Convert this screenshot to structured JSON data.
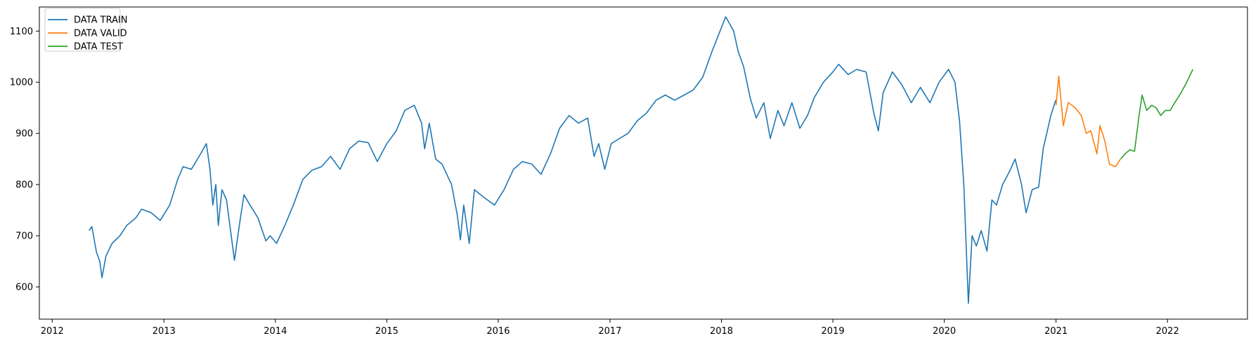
{
  "chart_data": {
    "type": "line",
    "title": "",
    "xlabel": "",
    "ylabel": "",
    "x_ticks": [
      "2012",
      "2013",
      "2014",
      "2015",
      "2016",
      "2017",
      "2018",
      "2019",
      "2020",
      "2021",
      "2022"
    ],
    "y_ticks": [
      "600",
      "700",
      "800",
      "900",
      "1000",
      "1100"
    ],
    "xlim": [
      "2011-11-20",
      "2022-09-20"
    ],
    "ylim": [
      537,
      1147
    ],
    "grid": false,
    "legend_position": "top-left",
    "series": [
      {
        "name": "DATA TRAIN",
        "color": "#1f77b4",
        "points": [
          [
            "2012-05-01",
            710
          ],
          [
            "2012-05-10",
            718
          ],
          [
            "2012-05-25",
            668
          ],
          [
            "2012-06-05",
            650
          ],
          [
            "2012-06-12",
            618
          ],
          [
            "2012-06-25",
            660
          ],
          [
            "2012-07-15",
            685
          ],
          [
            "2012-08-10",
            700
          ],
          [
            "2012-09-01",
            720
          ],
          [
            "2012-10-01",
            735
          ],
          [
            "2012-10-20",
            752
          ],
          [
            "2012-11-20",
            745
          ],
          [
            "2012-12-20",
            730
          ],
          [
            "2013-01-20",
            760
          ],
          [
            "2013-02-15",
            810
          ],
          [
            "2013-03-05",
            835
          ],
          [
            "2013-04-01",
            830
          ],
          [
            "2013-05-01",
            860
          ],
          [
            "2013-05-20",
            880
          ],
          [
            "2013-06-01",
            830
          ],
          [
            "2013-06-10",
            760
          ],
          [
            "2013-06-20",
            800
          ],
          [
            "2013-06-28",
            720
          ],
          [
            "2013-07-10",
            790
          ],
          [
            "2013-07-25",
            770
          ],
          [
            "2013-08-20",
            652
          ],
          [
            "2013-09-05",
            720
          ],
          [
            "2013-09-20",
            780
          ],
          [
            "2013-10-10",
            760
          ],
          [
            "2013-11-05",
            735
          ],
          [
            "2013-12-01",
            690
          ],
          [
            "2013-12-15",
            700
          ],
          [
            "2014-01-05",
            685
          ],
          [
            "2014-02-01",
            720
          ],
          [
            "2014-03-01",
            760
          ],
          [
            "2014-04-01",
            810
          ],
          [
            "2014-05-01",
            828
          ],
          [
            "2014-06-01",
            835
          ],
          [
            "2014-07-01",
            855
          ],
          [
            "2014-08-01",
            830
          ],
          [
            "2014-09-01",
            870
          ],
          [
            "2014-10-01",
            885
          ],
          [
            "2014-11-01",
            882
          ],
          [
            "2014-12-01",
            845
          ],
          [
            "2015-01-01",
            880
          ],
          [
            "2015-02-01",
            905
          ],
          [
            "2015-03-01",
            945
          ],
          [
            "2015-04-01",
            955
          ],
          [
            "2015-04-25",
            920
          ],
          [
            "2015-05-05",
            870
          ],
          [
            "2015-05-20",
            920
          ],
          [
            "2015-06-10",
            850
          ],
          [
            "2015-07-01",
            840
          ],
          [
            "2015-08-01",
            800
          ],
          [
            "2015-08-20",
            740
          ],
          [
            "2015-08-30",
            692
          ],
          [
            "2015-09-10",
            760
          ],
          [
            "2015-09-28",
            685
          ],
          [
            "2015-10-15",
            790
          ],
          [
            "2015-11-15",
            775
          ],
          [
            "2015-12-20",
            760
          ],
          [
            "2016-01-20",
            790
          ],
          [
            "2016-02-20",
            830
          ],
          [
            "2016-03-20",
            845
          ],
          [
            "2016-04-20",
            840
          ],
          [
            "2016-05-20",
            820
          ],
          [
            "2016-06-20",
            860
          ],
          [
            "2016-07-20",
            910
          ],
          [
            "2016-08-20",
            935
          ],
          [
            "2016-09-20",
            920
          ],
          [
            "2016-10-20",
            930
          ],
          [
            "2016-11-10",
            855
          ],
          [
            "2016-11-25",
            880
          ],
          [
            "2016-12-15",
            830
          ],
          [
            "2017-01-05",
            880
          ],
          [
            "2017-02-01",
            890
          ],
          [
            "2017-03-01",
            900
          ],
          [
            "2017-04-01",
            925
          ],
          [
            "2017-05-01",
            940
          ],
          [
            "2017-06-01",
            965
          ],
          [
            "2017-07-01",
            975
          ],
          [
            "2017-08-01",
            965
          ],
          [
            "2017-09-01",
            975
          ],
          [
            "2017-10-01",
            985
          ],
          [
            "2017-11-01",
            1010
          ],
          [
            "2017-12-01",
            1060
          ],
          [
            "2018-01-15",
            1128
          ],
          [
            "2018-02-10",
            1100
          ],
          [
            "2018-02-25",
            1060
          ],
          [
            "2018-03-15",
            1030
          ],
          [
            "2018-04-05",
            970
          ],
          [
            "2018-04-25",
            930
          ],
          [
            "2018-05-20",
            960
          ],
          [
            "2018-06-10",
            890
          ],
          [
            "2018-07-05",
            945
          ],
          [
            "2018-07-25",
            915
          ],
          [
            "2018-08-20",
            960
          ],
          [
            "2018-09-15",
            910
          ],
          [
            "2018-10-10",
            935
          ],
          [
            "2018-11-01",
            970
          ],
          [
            "2018-12-01",
            1000
          ],
          [
            "2019-01-01",
            1020
          ],
          [
            "2019-01-20",
            1035
          ],
          [
            "2019-02-20",
            1015
          ],
          [
            "2019-03-20",
            1025
          ],
          [
            "2019-04-20",
            1020
          ],
          [
            "2019-05-15",
            940
          ],
          [
            "2019-05-30",
            905
          ],
          [
            "2019-06-15",
            980
          ],
          [
            "2019-07-15",
            1020
          ],
          [
            "2019-08-15",
            995
          ],
          [
            "2019-09-15",
            960
          ],
          [
            "2019-10-15",
            990
          ],
          [
            "2019-11-15",
            960
          ],
          [
            "2019-12-15",
            1000
          ],
          [
            "2020-01-15",
            1025
          ],
          [
            "2020-02-05",
            1000
          ],
          [
            "2020-02-20",
            925
          ],
          [
            "2020-03-05",
            800
          ],
          [
            "2020-03-20",
            568
          ],
          [
            "2020-04-01",
            700
          ],
          [
            "2020-04-15",
            680
          ],
          [
            "2020-05-01",
            710
          ],
          [
            "2020-05-20",
            670
          ],
          [
            "2020-06-05",
            770
          ],
          [
            "2020-06-20",
            760
          ],
          [
            "2020-07-10",
            800
          ],
          [
            "2020-08-01",
            825
          ],
          [
            "2020-08-20",
            850
          ],
          [
            "2020-09-10",
            800
          ],
          [
            "2020-09-25",
            745
          ],
          [
            "2020-10-15",
            790
          ],
          [
            "2020-11-05",
            795
          ],
          [
            "2020-11-20",
            870
          ],
          [
            "2020-12-15",
            935
          ],
          [
            "2020-12-31",
            965
          ]
        ]
      },
      {
        "name": "DATA VALID",
        "color": "#ff7f0e",
        "points": [
          [
            "2021-01-01",
            955
          ],
          [
            "2021-01-10",
            1012
          ],
          [
            "2021-01-25",
            915
          ],
          [
            "2021-02-10",
            960
          ],
          [
            "2021-03-05",
            950
          ],
          [
            "2021-03-25",
            935
          ],
          [
            "2021-04-10",
            900
          ],
          [
            "2021-04-25",
            905
          ],
          [
            "2021-05-15",
            860
          ],
          [
            "2021-05-25",
            915
          ],
          [
            "2021-06-10",
            885
          ],
          [
            "2021-06-25",
            840
          ],
          [
            "2021-07-15",
            835
          ],
          [
            "2021-07-31",
            850
          ]
        ]
      },
      {
        "name": "DATA TEST",
        "color": "#2ca02c",
        "points": [
          [
            "2021-08-01",
            850
          ],
          [
            "2021-08-15",
            860
          ],
          [
            "2021-08-31",
            868
          ],
          [
            "2021-09-15",
            865
          ],
          [
            "2021-09-30",
            935
          ],
          [
            "2021-10-10",
            975
          ],
          [
            "2021-10-25",
            945
          ],
          [
            "2021-11-10",
            955
          ],
          [
            "2021-11-25",
            950
          ],
          [
            "2021-12-10",
            935
          ],
          [
            "2021-12-25",
            945
          ],
          [
            "2022-01-10",
            945
          ],
          [
            "2022-01-25",
            960
          ],
          [
            "2022-02-15",
            980
          ],
          [
            "2022-03-05",
            1000
          ],
          [
            "2022-03-25",
            1025
          ]
        ]
      }
    ]
  }
}
